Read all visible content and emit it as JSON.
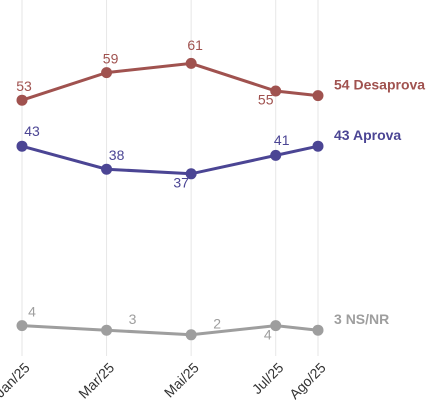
{
  "chart_data": {
    "type": "line",
    "x": [
      "2025-01",
      "2025-03",
      "2025-05",
      "2025-07",
      "2025-08"
    ],
    "xlim": [
      "2025-01",
      "2025-08"
    ],
    "xticks": [
      {
        "value": "2025-01",
        "label": "Jan/25"
      },
      {
        "value": "2025-03",
        "label": "Mar/25"
      },
      {
        "value": "2025-05",
        "label": "Mai/25"
      },
      {
        "value": "2025-07",
        "label": "Jul/25"
      },
      {
        "value": "2025-08",
        "label": "Ago/25"
      }
    ],
    "ylim": [
      0,
      65
    ],
    "grid": true,
    "series": [
      {
        "name": "Desaprova",
        "color": "#a0524f",
        "values": [
          53,
          59,
          61,
          55,
          54
        ]
      },
      {
        "name": "Aprova",
        "color": "#4b4594",
        "values": [
          43,
          38,
          37,
          41,
          43
        ]
      },
      {
        "name": "NS/NR",
        "color": "#9e9e9e",
        "values": [
          4,
          3,
          2,
          4,
          3
        ]
      }
    ]
  }
}
